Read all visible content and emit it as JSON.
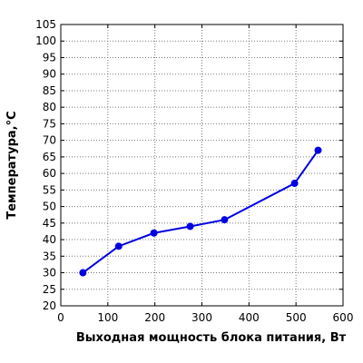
{
  "chart_data": {
    "type": "line",
    "title": "",
    "xlabel": "Выходная мощность блока питания, Вт",
    "ylabel": "Температура,°С",
    "xlim": [
      0,
      600
    ],
    "ylim": [
      20,
      105
    ],
    "xticks": [
      0,
      100,
      200,
      300,
      400,
      500,
      600
    ],
    "yticks": [
      20,
      25,
      30,
      35,
      40,
      45,
      50,
      55,
      60,
      65,
      70,
      75,
      80,
      85,
      90,
      95,
      100,
      105
    ],
    "grid": true,
    "legend": "none",
    "series": [
      {
        "color": "#0000e0",
        "points": [
          {
            "x": 47,
            "y": 30
          },
          {
            "x": 123,
            "y": 38
          },
          {
            "x": 198,
            "y": 42
          },
          {
            "x": 275,
            "y": 44
          },
          {
            "x": 348,
            "y": 46
          },
          {
            "x": 497,
            "y": 57
          },
          {
            "x": 547,
            "y": 67
          }
        ]
      }
    ]
  }
}
